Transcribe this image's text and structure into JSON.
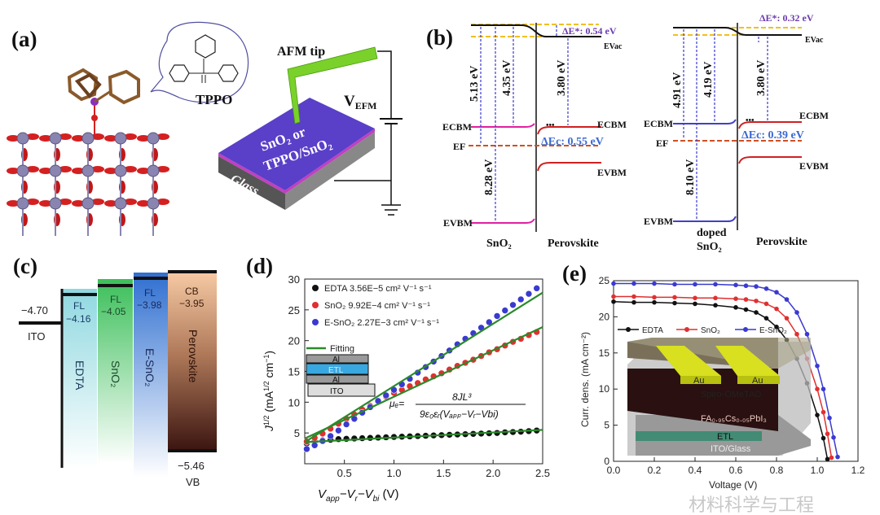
{
  "panel_a": {
    "label": "(a)",
    "molecule_name": "TPPO",
    "tip_label": "AFM tip",
    "voltage_label": "V",
    "voltage_sub": "EFM",
    "film_line1": "SnO₂ or",
    "film_line2": "TPPO/SnO₂",
    "substrate_label": "Glass",
    "colors": {
      "film": "#5a3fc8",
      "interlayer": "#c040c0",
      "tip": "#7ad12a",
      "oxygen": "#d42020",
      "tin": "#8a85b0",
      "carbon": "#8b5a2b"
    }
  },
  "panel_b": {
    "label": "(b)",
    "left": {
      "e_vac": "EVac",
      "e_cbm_left": "ECBM",
      "e_cbm_right": "ECBM",
      "e_f": "EF",
      "e_vbm_left": "EVBM",
      "e_vbm_right": "EVBM",
      "delta_e_star": "ΔE*: 0.54 eV",
      "delta_ec": "ΔEc: 0.55 eV",
      "gap1": "5.13 eV",
      "gap2": "8.28 eV",
      "gap3": "4.35 eV",
      "gap4": "3.80 eV",
      "material_left": "SnO₂",
      "material_right": "Perovskite",
      "band_color": "#e020a0"
    },
    "right": {
      "e_vac": "EVac",
      "e_cbm_left": "ECBM",
      "e_cbm_right": "ECBM",
      "e_f": "EF",
      "e_vbm_left": "EVBM",
      "e_vbm_right": "EVBM",
      "delta_e_star": "ΔE*: 0.32 eV",
      "delta_ec": "ΔEc: 0.39 eV",
      "gap1": "4.91 eV",
      "gap2": "8.10 eV",
      "gap3": "4.19 eV",
      "gap4": "3.80 eV",
      "material_left_1": "doped",
      "material_left_2": "SnO₂",
      "material_right": "Perovskite",
      "band_color": "#4040c8"
    }
  },
  "panel_c": {
    "label": "(c)",
    "ito_value": "−4.70",
    "ito_label": "ITO",
    "edta": {
      "fl": "FL",
      "value": "−4.16",
      "name": "EDTA",
      "color": "#8fd8e0"
    },
    "sno2": {
      "fl": "FL",
      "value": "−4.05",
      "name": "SnO₂",
      "color": "#3cbf5a"
    },
    "esno2": {
      "fl": "FL",
      "value": "−3.98",
      "name": "E-SnO₂",
      "color": "#2f6fd0"
    },
    "perovskite": {
      "cb": "CB",
      "cb_value": "−3.95",
      "name": "Perovskite",
      "vb_value": "−5.46",
      "vb": "VB"
    }
  },
  "chart_data": [
    {
      "panel_label": "(d)",
      "type": "scatter",
      "xlabel_parts": [
        "V",
        "app",
        "−V",
        "r",
        "−V",
        "bi",
        " (V)"
      ],
      "ylabel_parts": [
        "J",
        "1/2",
        " (mA",
        "1/2",
        " cm",
        "−1",
        ")"
      ],
      "xlim": [
        0.1,
        2.5
      ],
      "ylim": [
        0,
        30
      ],
      "xticks": [
        "0.5",
        "1.0",
        "1.5",
        "2.0",
        "2.5"
      ],
      "yticks": [
        "5",
        "10",
        "15",
        "20",
        "25",
        "30"
      ],
      "x": [
        0.12,
        0.2,
        0.28,
        0.36,
        0.44,
        0.52,
        0.6,
        0.68,
        0.76,
        0.84,
        0.92,
        1.0,
        1.08,
        1.16,
        1.24,
        1.32,
        1.4,
        1.48,
        1.56,
        1.64,
        1.72,
        1.8,
        1.88,
        1.96,
        2.04,
        2.12,
        2.2,
        2.28,
        2.36,
        2.44
      ],
      "series": [
        {
          "name": "EDTA 3.56E−5 cm² V⁻¹ s⁻¹",
          "color": "#111111",
          "values": [
            3.3,
            3.6,
            3.8,
            3.9,
            4.0,
            4.05,
            4.1,
            4.15,
            4.2,
            4.25,
            4.3,
            4.35,
            4.4,
            4.45,
            4.5,
            4.55,
            4.6,
            4.65,
            4.7,
            4.75,
            4.8,
            4.85,
            4.9,
            4.95,
            5.0,
            5.1,
            5.15,
            5.2,
            5.3,
            5.4
          ],
          "fit": [
            [
              0.1,
              3.5
            ],
            [
              2.5,
              5.5
            ]
          ]
        },
        {
          "name": "SnO₂ 9.92E−4 cm² V⁻¹ s⁻¹",
          "color": "#e03030",
          "values": [
            3.6,
            4.2,
            4.9,
            5.7,
            6.5,
            7.3,
            8.0,
            8.8,
            9.4,
            10.1,
            10.9,
            11.5,
            12.0,
            12.6,
            13.1,
            13.7,
            14.2,
            14.7,
            15.3,
            15.9,
            16.4,
            16.9,
            17.5,
            18.1,
            18.6,
            19.2,
            19.8,
            20.3,
            20.9,
            21.4
          ],
          "fit": [
            [
              0.1,
              4.1
            ],
            [
              2.5,
              22.2
            ]
          ]
        },
        {
          "name": "E-SnO₂ 2.27E−3 cm² V⁻¹ s⁻¹",
          "color": "#3a3ad0",
          "values": [
            2.4,
            3.0,
            3.7,
            4.5,
            5.4,
            6.4,
            7.3,
            8.3,
            9.2,
            10.2,
            11.1,
            12.0,
            12.9,
            13.8,
            14.8,
            15.7,
            16.6,
            17.5,
            18.4,
            19.4,
            20.3,
            21.2,
            22.1,
            23.0,
            24.0,
            24.9,
            25.8,
            26.7,
            27.6,
            28.5
          ],
          "fit": [
            [
              0.1,
              3.5
            ],
            [
              2.5,
              27.8
            ]
          ]
        }
      ],
      "fit_label": "Fitting",
      "fit_color": "#2a8a2a",
      "inset_layers": [
        "Al",
        "ETL",
        "Al",
        "ITO"
      ],
      "formula": {
        "lhs": "μₑ=",
        "numerator": "8JL³",
        "denominator": "9ε₀εᵣ(Vₐₚₚ−Vᵣ−Vbi)"
      }
    },
    {
      "panel_label": "(e)",
      "type": "line",
      "xlabel": "Voltage (V)",
      "ylabel": "Curr. dens. (mA cm⁻²)",
      "xlim": [
        0,
        1.2
      ],
      "ylim": [
        0,
        25
      ],
      "xticks": [
        "0.0",
        "0.2",
        "0.4",
        "0.6",
        "0.8",
        "1.0",
        "1.2"
      ],
      "yticks": [
        "0",
        "5",
        "10",
        "15",
        "20",
        "25"
      ],
      "legend_position": "top",
      "series": [
        {
          "name": "EDTA",
          "color": "#111111",
          "x": [
            0,
            0.1,
            0.2,
            0.3,
            0.4,
            0.5,
            0.6,
            0.65,
            0.7,
            0.75,
            0.8,
            0.85,
            0.9,
            0.95,
            1.0,
            1.03,
            1.05
          ],
          "y": [
            22.1,
            22.0,
            22.0,
            21.9,
            21.8,
            21.6,
            21.3,
            21.0,
            20.6,
            19.8,
            18.6,
            16.8,
            14.2,
            10.8,
            6.4,
            3.2,
            0.3
          ]
        },
        {
          "name": "SnO₂",
          "color": "#e03030",
          "x": [
            0,
            0.1,
            0.2,
            0.3,
            0.4,
            0.5,
            0.6,
            0.65,
            0.7,
            0.75,
            0.8,
            0.85,
            0.9,
            0.95,
            1.0,
            1.03,
            1.05,
            1.07
          ],
          "y": [
            22.8,
            22.8,
            22.7,
            22.7,
            22.6,
            22.6,
            22.5,
            22.4,
            22.2,
            21.8,
            21.1,
            19.8,
            17.6,
            14.2,
            10.0,
            6.8,
            3.8,
            0.5
          ]
        },
        {
          "name": "E-SnO₂",
          "color": "#3a3ad0",
          "x": [
            0,
            0.1,
            0.2,
            0.3,
            0.4,
            0.5,
            0.6,
            0.65,
            0.7,
            0.75,
            0.8,
            0.85,
            0.9,
            0.95,
            1.0,
            1.03,
            1.06,
            1.08,
            1.1
          ],
          "y": [
            24.6,
            24.6,
            24.6,
            24.5,
            24.5,
            24.5,
            24.4,
            24.3,
            24.2,
            23.9,
            23.4,
            22.4,
            20.6,
            17.6,
            13.2,
            10.0,
            6.0,
            3.3,
            0.6
          ]
        }
      ],
      "inset_layers": {
        "electrode_1": "Au",
        "electrode_2": "Au",
        "htl": "Spiro-OMeTAD",
        "absorber": "FA₀.₉₅Cs₀.₀₅PbI₃",
        "etl": "ETL",
        "substrate": "ITO/Glass"
      }
    }
  ],
  "watermark": "材料科学与工程"
}
